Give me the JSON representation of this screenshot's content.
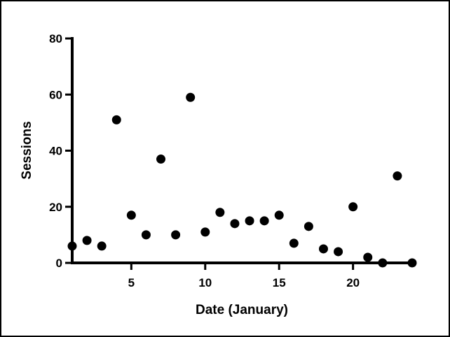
{
  "chart_data": {
    "type": "scatter",
    "xlabel": "Date (January)",
    "ylabel": "Sessions",
    "xlim": [
      1,
      24
    ],
    "ylim": [
      0,
      80
    ],
    "x_ticks": [
      5,
      10,
      15,
      20
    ],
    "y_ticks": [
      0,
      20,
      40,
      60,
      80
    ],
    "grid": false,
    "marker_color": "#000000",
    "points": [
      {
        "x": 1,
        "y": 6
      },
      {
        "x": 2,
        "y": 8
      },
      {
        "x": 3,
        "y": 6
      },
      {
        "x": 4,
        "y": 51
      },
      {
        "x": 5,
        "y": 17
      },
      {
        "x": 6,
        "y": 10
      },
      {
        "x": 7,
        "y": 37
      },
      {
        "x": 8,
        "y": 10
      },
      {
        "x": 9,
        "y": 59
      },
      {
        "x": 10,
        "y": 11
      },
      {
        "x": 11,
        "y": 18
      },
      {
        "x": 12,
        "y": 14
      },
      {
        "x": 13,
        "y": 15
      },
      {
        "x": 14,
        "y": 15
      },
      {
        "x": 15,
        "y": 17
      },
      {
        "x": 16,
        "y": 7
      },
      {
        "x": 17,
        "y": 13
      },
      {
        "x": 18,
        "y": 5
      },
      {
        "x": 19,
        "y": 4
      },
      {
        "x": 20,
        "y": 20
      },
      {
        "x": 21,
        "y": 2
      },
      {
        "x": 22,
        "y": 0
      },
      {
        "x": 23,
        "y": 31
      },
      {
        "x": 24,
        "y": 0
      }
    ]
  }
}
